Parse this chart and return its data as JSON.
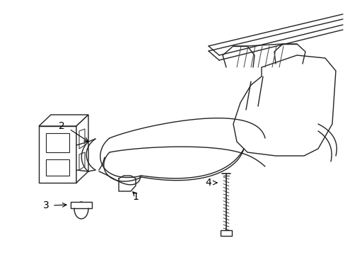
{
  "background_color": "#ffffff",
  "line_color": "#222222",
  "line_width": 1.0,
  "figsize": [
    4.89,
    3.6
  ],
  "dpi": 100
}
